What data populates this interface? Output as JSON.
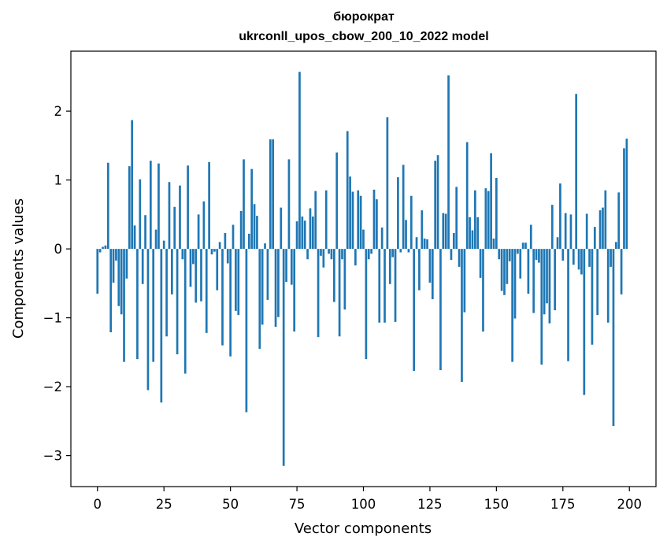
{
  "chart_data": {
    "type": "bar",
    "title": "бюрократ",
    "subtitle": "ukrconll_upos_cbow_200_10_2022 model",
    "xlabel": "Vector components",
    "ylabel": "Components values",
    "xlim": [
      -10,
      210
    ],
    "ylim": [
      -3.45,
      2.87
    ],
    "xticks": [
      0,
      25,
      50,
      75,
      100,
      125,
      150,
      175,
      200
    ],
    "yticks": [
      -3,
      -2,
      -1,
      0,
      1,
      2
    ],
    "bar_color": "#1f77b4",
    "grid": false,
    "x": [
      0,
      1,
      2,
      3,
      4,
      5,
      6,
      7,
      8,
      9,
      10,
      11,
      12,
      13,
      14,
      15,
      16,
      17,
      18,
      19,
      20,
      21,
      22,
      23,
      24,
      25,
      26,
      27,
      28,
      29,
      30,
      31,
      32,
      33,
      34,
      35,
      36,
      37,
      38,
      39,
      40,
      41,
      42,
      43,
      44,
      45,
      46,
      47,
      48,
      49,
      50,
      51,
      52,
      53,
      54,
      55,
      56,
      57,
      58,
      59,
      60,
      61,
      62,
      63,
      64,
      65,
      66,
      67,
      68,
      69,
      70,
      71,
      72,
      73,
      74,
      75,
      76,
      77,
      78,
      79,
      80,
      81,
      82,
      83,
      84,
      85,
      86,
      87,
      88,
      89,
      90,
      91,
      92,
      93,
      94,
      95,
      96,
      97,
      98,
      99,
      100,
      101,
      102,
      103,
      104,
      105,
      106,
      107,
      108,
      109,
      110,
      111,
      112,
      113,
      114,
      115,
      116,
      117,
      118,
      119,
      120,
      121,
      122,
      123,
      124,
      125,
      126,
      127,
      128,
      129,
      130,
      131,
      132,
      133,
      134,
      135,
      136,
      137,
      138,
      139,
      140,
      141,
      142,
      143,
      144,
      145,
      146,
      147,
      148,
      149,
      150,
      151,
      152,
      153,
      154,
      155,
      156,
      157,
      158,
      159,
      160,
      161,
      162,
      163,
      164,
      165,
      166,
      167,
      168,
      169,
      170,
      171,
      172,
      173,
      174,
      175,
      176,
      177,
      178,
      179,
      180,
      181,
      182,
      183,
      184,
      185,
      186,
      187,
      188,
      189,
      190,
      191,
      192,
      193,
      194,
      195,
      196,
      197,
      198,
      199
    ],
    "values": [
      -0.65,
      -0.05,
      0.03,
      0.05,
      1.25,
      -1.21,
      -0.49,
      -0.17,
      -0.83,
      -0.95,
      -1.64,
      -0.43,
      1.2,
      1.87,
      0.34,
      -1.6,
      1.01,
      -0.51,
      0.49,
      -2.05,
      1.28,
      -1.64,
      0.28,
      1.24,
      -2.23,
      0.12,
      -1.27,
      0.97,
      -0.66,
      0.61,
      -1.53,
      0.92,
      -0.15,
      -1.81,
      1.21,
      -0.55,
      -0.22,
      -0.78,
      0.5,
      -0.76,
      0.69,
      -1.22,
      1.26,
      -0.08,
      -0.04,
      -0.6,
      0.1,
      -1.4,
      0.23,
      -0.21,
      -1.56,
      0.35,
      -0.9,
      -0.96,
      0.55,
      1.3,
      -2.37,
      0.22,
      1.16,
      0.65,
      0.48,
      -1.45,
      -1.1,
      0.08,
      -0.74,
      1.59,
      1.59,
      -1.13,
      -0.99,
      0.6,
      -3.15,
      -0.48,
      1.3,
      -0.52,
      -1.2,
      0.4,
      2.57,
      0.47,
      0.41,
      -0.15,
      0.59,
      0.47,
      0.84,
      -1.28,
      -0.1,
      -0.27,
      0.85,
      -0.07,
      -0.15,
      -0.77,
      1.4,
      -1.27,
      -0.15,
      -0.88,
      1.71,
      1.05,
      0.83,
      -0.24,
      0.85,
      0.77,
      0.28,
      -1.6,
      -0.15,
      -0.07,
      0.86,
      0.72,
      -1.07,
      0.31,
      -1.07,
      1.91,
      -0.51,
      -0.12,
      -1.06,
      1.04,
      -0.05,
      1.22,
      0.42,
      -0.05,
      0.77,
      -1.77,
      0.17,
      -0.6,
      0.56,
      0.15,
      0.14,
      -0.49,
      -0.73,
      1.28,
      1.36,
      -1.76,
      0.52,
      0.51,
      2.52,
      -0.16,
      0.23,
      0.9,
      -0.26,
      -1.93,
      -0.92,
      1.55,
      0.46,
      0.27,
      0.85,
      0.46,
      -0.42,
      -1.2,
      0.88,
      0.84,
      1.39,
      0.15,
      1.03,
      -0.15,
      -0.61,
      -0.67,
      -0.51,
      -0.18,
      -1.64,
      -1.01,
      -0.07,
      -0.43,
      0.09,
      0.09,
      -0.65,
      0.35,
      -0.93,
      -0.16,
      -0.2,
      -1.68,
      -0.95,
      -0.79,
      -1.08,
      0.64,
      -0.89,
      0.17,
      0.95,
      -0.17,
      0.52,
      -1.63,
      0.5,
      -0.23,
      2.25,
      -0.3,
      -0.37,
      -2.12,
      0.51,
      -0.26,
      -1.39,
      0.32,
      -0.96,
      0.56,
      0.6,
      0.85,
      -1.07,
      -0.26,
      -2.57,
      0.1,
      0.82,
      -0.66,
      1.46,
      1.6
    ]
  }
}
